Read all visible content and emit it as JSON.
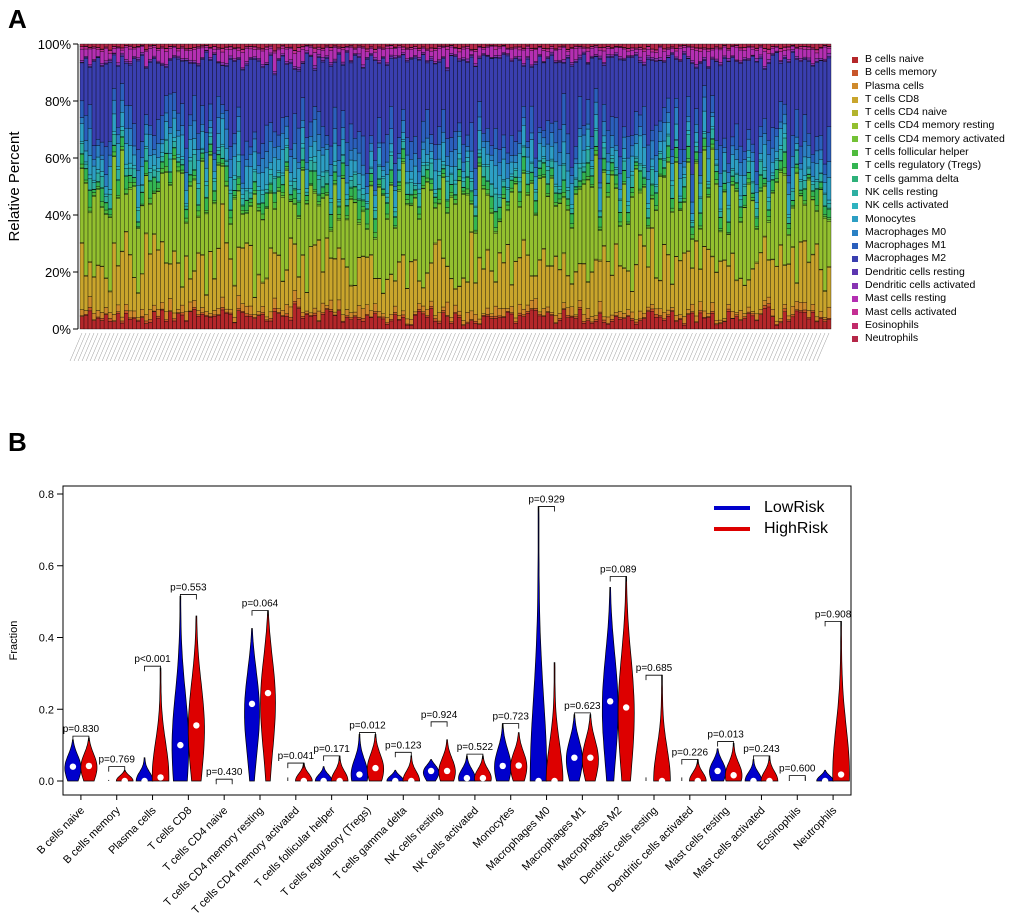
{
  "panels": {
    "a": "A",
    "b": "B"
  },
  "chart_data": [
    {
      "type": "bar",
      "stacked": true,
      "title": "",
      "ylabel": "Relative Percent",
      "ylim": [
        0,
        1
      ],
      "yticks": [
        "0%",
        "20%",
        "40%",
        "60%",
        "80%",
        "100%"
      ],
      "n_samples": 187,
      "sample_labels_note": "x-axis sample labels too small to read",
      "legend_entries": [
        {
          "name": "B cells naive",
          "color": "#b5272a"
        },
        {
          "name": "B cells memory",
          "color": "#c8562a"
        },
        {
          "name": "Plasma cells",
          "color": "#cf8a2c"
        },
        {
          "name": "T cells CD8",
          "color": "#c9a52c"
        },
        {
          "name": "T cells CD4 naive",
          "color": "#b3b42d"
        },
        {
          "name": "T cells CD4 memory resting",
          "color": "#93c02f"
        },
        {
          "name": "T cells CD4 memory activated",
          "color": "#73c236"
        },
        {
          "name": "T cells follicular helper",
          "color": "#4fbb3d"
        },
        {
          "name": "T cells regulatory (Tregs)",
          "color": "#33b552"
        },
        {
          "name": "T cells gamma delta",
          "color": "#2eb17a"
        },
        {
          "name": "NK cells resting",
          "color": "#2eafa2"
        },
        {
          "name": "NK cells activated",
          "color": "#2fb3c0"
        },
        {
          "name": "Monocytes",
          "color": "#2d9fc4"
        },
        {
          "name": "Macrophages M0",
          "color": "#2b80c4"
        },
        {
          "name": "Macrophages M1",
          "color": "#2b5fbd"
        },
        {
          "name": "Macrophages M2",
          "color": "#3a3fb0"
        },
        {
          "name": "Dendritic cells resting",
          "color": "#5c35b0"
        },
        {
          "name": "Dendritic cells activated",
          "color": "#8834b3"
        },
        {
          "name": "Mast cells resting",
          "color": "#b42fb2"
        },
        {
          "name": "Mast cells activated",
          "color": "#c42e93"
        },
        {
          "name": "Eosinophils",
          "color": "#c12a6a"
        },
        {
          "name": "Neutrophils",
          "color": "#b52748"
        }
      ],
      "mean_fractions_estimate": [
        0.04,
        0.005,
        0.02,
        0.16,
        0.002,
        0.24,
        0.003,
        0.01,
        0.03,
        0.002,
        0.03,
        0.01,
        0.05,
        0.04,
        0.06,
        0.23,
        0.003,
        0.005,
        0.03,
        0.006,
        0.001,
        0.01
      ]
    },
    {
      "type": "violin",
      "title": "",
      "ylabel": "Fraction",
      "ylim": [
        0,
        0.8
      ],
      "yticks": [
        "0.0",
        "0.2",
        "0.4",
        "0.6",
        "0.8"
      ],
      "categories": [
        "B cells naive",
        "B cells memory",
        "Plasma cells",
        "T cells CD8",
        "T cells CD4 naive",
        "T cells CD4 memory resting",
        "T cells CD4 memory activated",
        "T cells follicular helper",
        "T cells regulatory (Tregs)",
        "T cells gamma delta",
        "NK cells resting",
        "NK cells activated",
        "Monocytes",
        "Macrophages M0",
        "Macrophages M1",
        "Macrophages M2",
        "Dendritic cells resting",
        "Dendritic cells activated",
        "Mast cells resting",
        "Mast cells activated",
        "Eosinophils",
        "Neutrophils"
      ],
      "p_values": [
        "p=0.830",
        "p=0.769",
        "p<0.001",
        "p=0.553",
        "p=0.430",
        "p=0.064",
        "p=0.041",
        "p=0.171",
        "p=0.012",
        "p=0.123",
        "p=0.924",
        "p=0.522",
        "p=0.723",
        "p=0.929",
        "p=0.623",
        "p=0.089",
        "p=0.685",
        "p=0.226",
        "p=0.013",
        "p=0.243",
        "p=0.600",
        "p=0.908"
      ],
      "bracket_heights": [
        0.125,
        0.04,
        0.32,
        0.52,
        0.005,
        0.475,
        0.05,
        0.07,
        0.135,
        0.08,
        0.165,
        0.075,
        0.16,
        0.765,
        0.19,
        0.57,
        0.295,
        0.06,
        0.11,
        0.07,
        0.015,
        0.445
      ],
      "series": [
        {
          "name": "LowRisk",
          "color": "#0000cc",
          "medians": [
            0.04,
            0.0,
            0.0,
            0.1,
            0.0,
            0.215,
            0.0,
            0.0,
            0.018,
            0.0,
            0.028,
            0.008,
            0.042,
            0.0,
            0.065,
            0.222,
            0.0,
            0.0,
            0.028,
            0.0,
            0.0,
            0.0
          ],
          "maxima": [
            0.115,
            0.003,
            0.065,
            0.515,
            0.002,
            0.425,
            0.01,
            0.04,
            0.13,
            0.03,
            0.06,
            0.07,
            0.16,
            0.765,
            0.185,
            0.54,
            0.01,
            0.01,
            0.09,
            0.06,
            0.002,
            0.03
          ]
        },
        {
          "name": "HighRisk",
          "color": "#dd0000",
          "medians": [
            0.042,
            0.0,
            0.01,
            0.155,
            0.0,
            0.245,
            0.0,
            0.0,
            0.036,
            0.0,
            0.028,
            0.008,
            0.043,
            0.0,
            0.065,
            0.205,
            0.0,
            0.0,
            0.016,
            0.0,
            0.0,
            0.018
          ],
          "maxima": [
            0.12,
            0.03,
            0.315,
            0.46,
            0.002,
            0.475,
            0.05,
            0.07,
            0.13,
            0.07,
            0.115,
            0.07,
            0.135,
            0.33,
            0.185,
            0.57,
            0.295,
            0.06,
            0.105,
            0.07,
            0.012,
            0.445
          ]
        }
      ]
    }
  ]
}
